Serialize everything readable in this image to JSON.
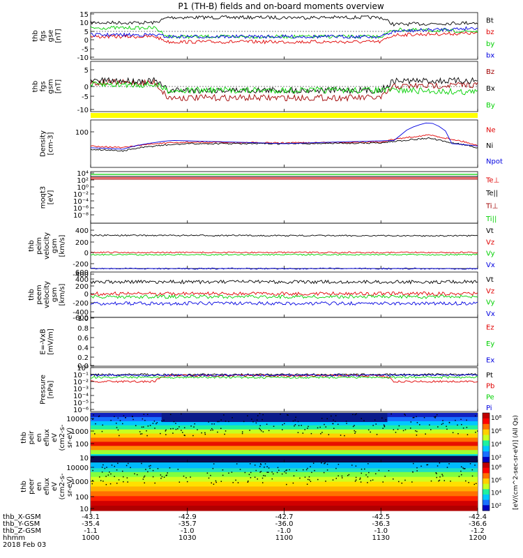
{
  "title": "P1 (TH-B) fields and on-board moments overview",
  "x_tick_labels": [
    "1000",
    "1030",
    "1100",
    "1130",
    "1200"
  ],
  "x_ticks_minutes": [
    0,
    30,
    60,
    90,
    120
  ],
  "orbit": {
    "rows": [
      {
        "label": "thb_X-GSM",
        "values": [
          "-43.1",
          "-42.9",
          "-42.7",
          "-42.5",
          "-42.4"
        ]
      },
      {
        "label": "thb_Y-GSM",
        "values": [
          "-35.4",
          "-35.7",
          "-36.0",
          "-36.3",
          "-36.6"
        ]
      },
      {
        "label": "thb_Z-GSM",
        "values": [
          "-1.1",
          "-1.0",
          "-1.0",
          "-1.0",
          "-1.2"
        ]
      },
      {
        "label": "hhmm",
        "values": [
          "1000",
          "1030",
          "1100",
          "1130",
          "1200"
        ]
      }
    ],
    "date": "2018 Feb 03"
  },
  "colors": {
    "black": "#000000",
    "red": "#e00000",
    "green": "#00d000",
    "blue": "#0000e0",
    "darkred": "#a00000",
    "yellow": "#ffff00"
  },
  "panels": [
    {
      "id": "fgs",
      "ylabel": [
        "thb",
        "fgs",
        "gse",
        "[nT]"
      ],
      "yticks": [
        "15",
        "10",
        "5",
        "0",
        "-5",
        "-10"
      ],
      "legend": [
        {
          "text": "Bt",
          "color": "black"
        },
        {
          "text": "bz",
          "color": "red"
        },
        {
          "text": "by",
          "color": "green"
        },
        {
          "text": "bx",
          "color": "blue"
        }
      ]
    },
    {
      "id": "fgs_gsm",
      "ylabel": [
        "thb",
        "fgs",
        "gsm",
        "[nT]"
      ],
      "yticks": [
        "5",
        "0",
        "-5",
        "-10"
      ],
      "legend": [
        {
          "text": "Bz",
          "color": "darkred"
        },
        {
          "text": "Bx",
          "color": "black"
        },
        {
          "text": "By",
          "color": "green"
        }
      ]
    },
    {
      "id": "density",
      "ylabel": [
        "Density",
        "[cm-3]"
      ],
      "yticks": [
        "100"
      ],
      "legend": [
        {
          "text": "Ne",
          "color": "red"
        },
        {
          "text": "Ni",
          "color": "black"
        },
        {
          "text": "Npot",
          "color": "blue"
        }
      ]
    },
    {
      "id": "temp",
      "ylabel": [
        "moqt3",
        "[eV]"
      ],
      "yticks": [
        "10⁴",
        "10²",
        "10⁰",
        "10⁻²",
        "10⁻⁴",
        "10⁻⁶",
        "10⁻⁸"
      ],
      "legend": [
        {
          "text": "Te⊥",
          "color": "red"
        },
        {
          "text": "Te||",
          "color": "black"
        },
        {
          "text": "Ti⊥",
          "color": "darkred"
        },
        {
          "text": "Ti||",
          "color": "green"
        }
      ]
    },
    {
      "id": "peim",
      "ylabel": [
        "thb",
        "peim",
        "velocity",
        "gsm",
        "[km/s]"
      ],
      "yticks": [
        "400",
        "200",
        "0",
        "-200",
        "-400"
      ],
      "legend": [
        {
          "text": "Vt",
          "color": "black"
        },
        {
          "text": "Vz",
          "color": "red"
        },
        {
          "text": "Vy",
          "color": "green"
        },
        {
          "text": "Vx",
          "color": "blue"
        }
      ]
    },
    {
      "id": "peem",
      "ylabel": [
        "thb",
        "peem",
        "velocity",
        "gsm",
        "[km/s]"
      ],
      "yticks": [
        "600",
        "400",
        "200",
        "0",
        "-200",
        "-400",
        "-600"
      ],
      "legend": [
        {
          "text": "Vt",
          "color": "black"
        },
        {
          "text": "Vz",
          "color": "red"
        },
        {
          "text": "Vy",
          "color": "green"
        },
        {
          "text": "Vx",
          "color": "blue"
        }
      ]
    },
    {
      "id": "efield",
      "ylabel": [
        "E=-VxB",
        "[mV/m]"
      ],
      "yticks": [
        "1.0",
        "0.8",
        "0.6",
        "0.4",
        "0.2",
        "0.0"
      ],
      "legend": [
        {
          "text": "Ez",
          "color": "red"
        },
        {
          "text": "Ey",
          "color": "green"
        },
        {
          "text": "Ex",
          "color": "blue"
        }
      ]
    },
    {
      "id": "pressure",
      "ylabel": [
        "Pressure",
        "[nPa]"
      ],
      "yticks": [
        "10⁰",
        "10⁻¹",
        "10⁻²",
        "10⁻³",
        "10⁻⁴",
        "10⁻⁵",
        "10⁻⁶"
      ],
      "legend": [
        {
          "text": "Pt",
          "color": "black"
        },
        {
          "text": "Pb",
          "color": "red"
        },
        {
          "text": "Pe",
          "color": "green"
        },
        {
          "text": "Pi",
          "color": "blue"
        }
      ]
    },
    {
      "id": "peir",
      "ylabel": [
        "thb",
        "peir",
        "en",
        "eflux",
        "eV",
        "(cm2-s-",
        "sr-eV)"
      ],
      "yticks": [
        "10000",
        "1000",
        "100",
        "10"
      ],
      "legend": []
    },
    {
      "id": "peer",
      "ylabel": [
        "thb",
        "peer",
        "en",
        "eflux",
        "eV",
        "(cm2-s-",
        "sr-eV)"
      ],
      "yticks": [
        "10000",
        "1000",
        "100",
        "10"
      ],
      "legend": []
    }
  ],
  "colorbar": {
    "ticks_top": [
      "10⁸",
      "10⁶",
      "10⁴",
      "10²"
    ],
    "ticks_bottom": [
      "10⁸",
      "10⁶",
      "10⁴",
      "10²"
    ],
    "label": "[eV/(cm^2-sec-sr-eV)] (All Qs)"
  },
  "chart_data": {
    "type": "line",
    "title": "P1 (TH-B) fields and on-board moments overview",
    "x_tick_labels": [
      "1000",
      "1030",
      "1100",
      "1130",
      "1200"
    ],
    "xlim_minutes_after_1000": [
      0,
      120
    ],
    "series_trend": [
      {
        "panel": "fgs",
        "name": "Bt",
        "x": [
          0,
          20,
          24,
          90,
          94,
          120
        ],
        "y": [
          5,
          5,
          8,
          8,
          4,
          5
        ]
      },
      {
        "panel": "fgs",
        "name": "bz",
        "x": [
          0,
          20,
          24,
          90,
          94,
          120
        ],
        "y": [
          -3,
          -3,
          -6,
          -6,
          -2,
          -1
        ]
      },
      {
        "panel": "fgs",
        "name": "by",
        "x": [
          0,
          20,
          24,
          90,
          94,
          120
        ],
        "y": [
          2,
          2,
          -3,
          -3,
          1,
          0
        ]
      },
      {
        "panel": "fgs",
        "name": "bx",
        "x": [
          0,
          20,
          24,
          90,
          94,
          120
        ],
        "y": [
          -2,
          -2,
          -3,
          -3,
          0,
          2
        ]
      },
      {
        "panel": "fgs_gsm",
        "name": "Bz",
        "x": [
          0,
          20,
          24,
          90,
          94,
          120
        ],
        "y": [
          2,
          2,
          -6,
          -6,
          0,
          1
        ]
      },
      {
        "panel": "fgs_gsm",
        "name": "Bx",
        "x": [
          0,
          20,
          24,
          90,
          94,
          120
        ],
        "y": [
          3,
          3,
          -2,
          -2,
          3,
          3
        ]
      },
      {
        "panel": "fgs_gsm",
        "name": "By",
        "x": [
          0,
          20,
          24,
          90,
          94,
          120
        ],
        "y": [
          1,
          1,
          -2,
          -2,
          -2,
          -3
        ]
      },
      {
        "panel": "density",
        "name": "Ne",
        "x": [
          0,
          10,
          20,
          30,
          60,
          90,
          105,
          110,
          120
        ],
        "y": [
          15,
          12,
          20,
          24,
          22,
          25,
          60,
          40,
          15
        ]
      },
      {
        "panel": "density",
        "name": "Ni",
        "x": [
          0,
          10,
          20,
          30,
          60,
          90,
          105,
          110,
          120
        ],
        "y": [
          10,
          8,
          15,
          20,
          20,
          22,
          40,
          25,
          12
        ]
      },
      {
        "panel": "density",
        "name": "Npot",
        "x": [
          0,
          10,
          25,
          60,
          95,
          105,
          112,
          120
        ],
        "y": [
          12,
          10,
          30,
          20,
          30,
          300,
          20,
          15
        ]
      },
      {
        "panel": "peim",
        "name": "Vt",
        "x": [
          0,
          120
        ],
        "y": [
          320,
          310
        ]
      },
      {
        "panel": "peim",
        "name": "Vz",
        "x": [
          0,
          120
        ],
        "y": [
          0,
          0
        ]
      },
      {
        "panel": "peim",
        "name": "Vy",
        "x": [
          0,
          120
        ],
        "y": [
          -40,
          -40
        ]
      },
      {
        "panel": "peim",
        "name": "Vx",
        "x": [
          0,
          120
        ],
        "y": [
          -300,
          -300
        ]
      },
      {
        "panel": "peem",
        "name": "Vt",
        "x": [
          0,
          120
        ],
        "y": [
          300,
          300
        ]
      },
      {
        "panel": "peem",
        "name": "Vz",
        "x": [
          0,
          120
        ],
        "y": [
          0,
          0
        ]
      },
      {
        "panel": "peem",
        "name": "Vy",
        "x": [
          0,
          120
        ],
        "y": [
          -80,
          -80
        ]
      },
      {
        "panel": "peem",
        "name": "Vx",
        "x": [
          0,
          120
        ],
        "y": [
          -250,
          -250
        ]
      },
      {
        "panel": "pressure",
        "name": "Pt",
        "x": [
          0,
          120
        ],
        "y": [
          0.1,
          0.1
        ]
      },
      {
        "panel": "pressure",
        "name": "Pb",
        "x": [
          0,
          20,
          24,
          90,
          94,
          120
        ],
        "y": [
          0.01,
          0.01,
          0.07,
          0.07,
          0.01,
          0.01
        ]
      },
      {
        "panel": "pressure",
        "name": "Pe",
        "x": [
          0,
          120
        ],
        "y": [
          0.04,
          0.04
        ]
      },
      {
        "panel": "pressure",
        "name": "Pi",
        "x": [
          0,
          120
        ],
        "y": [
          0.08,
          0.08
        ]
      }
    ]
  }
}
